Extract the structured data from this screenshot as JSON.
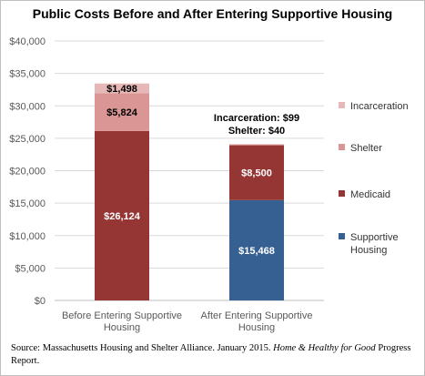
{
  "colors": {
    "incarceration": "#e6b8b7",
    "shelter": "#da9694",
    "medicaid": "#963634",
    "supportive_housing": "#366092",
    "grid": "#d9d9d9",
    "axis": "#bfbfbf"
  },
  "chart_data": {
    "type": "bar",
    "stacked": true,
    "title": "Public Costs Before and After Entering Supportive Housing",
    "categories": [
      [
        "Before Entering Supportive",
        "Housing"
      ],
      [
        "After Entering Supportive",
        "Housing"
      ]
    ],
    "series": [
      {
        "name": "Supportive Housing",
        "color_key": "supportive_housing",
        "values": [
          0,
          15468
        ],
        "labels": [
          "",
          "$15,468"
        ]
      },
      {
        "name": "Medicaid",
        "color_key": "medicaid",
        "values": [
          26124,
          8500
        ],
        "labels": [
          "$26,124",
          "$8,500"
        ]
      },
      {
        "name": "Shelter",
        "color_key": "shelter",
        "values": [
          5824,
          40
        ],
        "labels": [
          "$5,824",
          ""
        ]
      },
      {
        "name": "Incarceration",
        "color_key": "incarceration",
        "values": [
          1498,
          99
        ],
        "labels": [
          "$1,498",
          ""
        ]
      }
    ],
    "ylim": [
      0,
      40000
    ],
    "yticks": [
      "$0",
      "$5,000",
      "$10,000",
      "$15,000",
      "$20,000",
      "$25,000",
      "$30,000",
      "$35,000",
      "$40,000"
    ],
    "annotations": [
      "Incarceration: $99",
      "Shelter: $40"
    ],
    "legend_order": [
      "Incarceration",
      "Shelter",
      "Medicaid",
      "Supportive Housing"
    ],
    "legend_position": "right",
    "grid": true
  },
  "source": {
    "prefix": "Source: Massachusetts Housing and Shelter Alliance. January 2015.",
    "report_italic": "Home & Healthy for Good",
    "suffix": "Progress Report."
  }
}
